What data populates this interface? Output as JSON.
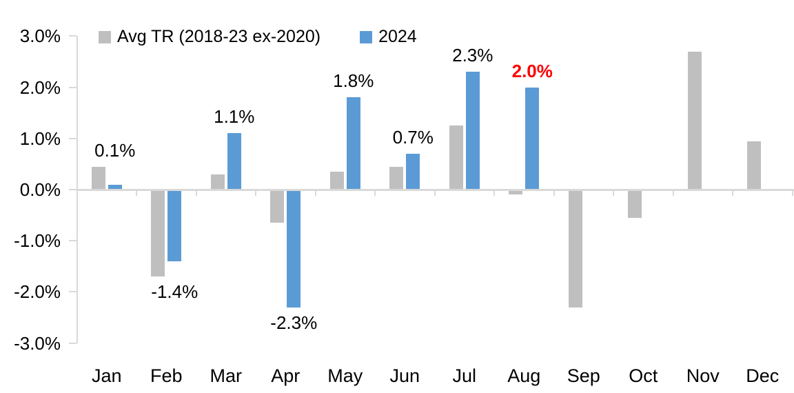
{
  "chart_data": {
    "type": "bar",
    "title": "",
    "xlabel": "",
    "ylabel": "",
    "categories": [
      "Jan",
      "Feb",
      "Mar",
      "Apr",
      "May",
      "Jun",
      "Jul",
      "Aug",
      "Sep",
      "Oct",
      "Nov",
      "Dec"
    ],
    "series": [
      {
        "name": "Avg TR (2018-23 ex-2020)",
        "color": "#bfbfbf",
        "values": [
          0.45,
          -1.7,
          0.3,
          -0.65,
          0.35,
          0.45,
          1.25,
          -0.1,
          -2.3,
          -0.55,
          2.7,
          0.95
        ]
      },
      {
        "name": "2024",
        "color": "#5b9bd5",
        "values": [
          0.1,
          -1.4,
          1.1,
          -2.3,
          1.8,
          0.7,
          2.3,
          2.0,
          null,
          null,
          null,
          null
        ]
      }
    ],
    "data_labels": [
      {
        "month": "Jan",
        "text": "0.1%",
        "color": "#000000",
        "bold": false
      },
      {
        "month": "Feb",
        "text": "-1.4%",
        "color": "#000000",
        "bold": false
      },
      {
        "month": "Mar",
        "text": "1.1%",
        "color": "#000000",
        "bold": false
      },
      {
        "month": "Apr",
        "text": "-2.3%",
        "color": "#000000",
        "bold": false
      },
      {
        "month": "May",
        "text": "1.8%",
        "color": "#000000",
        "bold": false
      },
      {
        "month": "Jun",
        "text": "0.7%",
        "color": "#000000",
        "bold": false
      },
      {
        "month": "Jul",
        "text": "2.3%",
        "color": "#000000",
        "bold": false
      },
      {
        "month": "Aug",
        "text": "2.0%",
        "color": "#ff0000",
        "bold": true
      }
    ],
    "ylim": [
      -3.0,
      3.0
    ],
    "yticks": [
      "3.0%",
      "2.0%",
      "1.0%",
      "0.0%",
      "-1.0%",
      "-2.0%",
      "-3.0%"
    ],
    "ytick_values": [
      3.0,
      2.0,
      1.0,
      0.0,
      -1.0,
      -2.0,
      -3.0
    ],
    "grid": false,
    "legend_position": "top-left",
    "axis_color": "#d9d9d9",
    "text_color": "#000000",
    "highlight_color": "#ff0000"
  }
}
